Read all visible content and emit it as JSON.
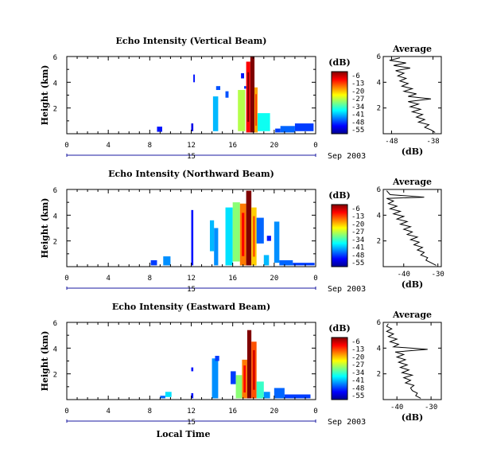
{
  "chart_data": [
    {
      "type": "heatmap",
      "title": "Echo Intensity (Vertical Beam)",
      "ylabel": "Height (km)",
      "y_ticks": [
        "6",
        "4",
        "2"
      ],
      "ylim": [
        0,
        6
      ],
      "x_ticks": [
        "0",
        "4",
        "8",
        "12",
        "16",
        "20",
        "0"
      ],
      "xlim_hours": [
        0,
        24
      ],
      "day_label": "15",
      "date_label": "Sep 2003",
      "colorbar": {
        "unit": "(dB)",
        "ticks": [
          "-6",
          "-13",
          "-20",
          "-27",
          "-34",
          "-41",
          "-48",
          "-55"
        ]
      },
      "echo_columns": [
        {
          "t0": 8.7,
          "t1": 9.2,
          "h0": 0.15,
          "h1": 0.55,
          "db": -48
        },
        {
          "t0": 12.0,
          "t1": 12.2,
          "h0": 0.2,
          "h1": 0.8,
          "db": -50
        },
        {
          "t0": 12.2,
          "t1": 12.35,
          "h0": 4.0,
          "h1": 4.6,
          "db": -48
        },
        {
          "t0": 14.1,
          "t1": 14.6,
          "h0": 0.2,
          "h1": 2.9,
          "db": -40
        },
        {
          "t0": 14.4,
          "t1": 14.8,
          "h0": 3.4,
          "h1": 3.7,
          "db": -45
        },
        {
          "t0": 15.3,
          "t1": 15.6,
          "h0": 2.8,
          "h1": 3.3,
          "db": -45
        },
        {
          "t0": 16.5,
          "t1": 17.2,
          "h0": 0.2,
          "h1": 3.4,
          "db": -28
        },
        {
          "t0": 16.8,
          "t1": 17.1,
          "h0": 4.3,
          "h1": 4.7,
          "db": -48
        },
        {
          "t0": 17.1,
          "t1": 17.4,
          "h0": 3.5,
          "h1": 3.7,
          "db": -46
        },
        {
          "t0": 17.3,
          "t1": 17.7,
          "h0": 0.1,
          "h1": 5.6,
          "db": -12
        },
        {
          "t0": 17.7,
          "t1": 18.1,
          "h0": 0.1,
          "h1": 6.0,
          "db": -5
        },
        {
          "t0": 18.1,
          "t1": 18.4,
          "h0": 0.1,
          "h1": 3.6,
          "db": -20
        },
        {
          "t0": 18.4,
          "t1": 19.6,
          "h0": 0.2,
          "h1": 1.6,
          "db": -36
        },
        {
          "t0": 20.1,
          "t1": 20.6,
          "h0": 0.1,
          "h1": 0.4,
          "db": -46
        },
        {
          "t0": 20.6,
          "t1": 22.0,
          "h0": 0.1,
          "h1": 0.6,
          "db": -44
        },
        {
          "t0": 22.0,
          "t1": 23.8,
          "h0": 0.2,
          "h1": 0.8,
          "db": -46
        }
      ],
      "average_profile": {
        "title": "Average",
        "xlabel": "(dB)",
        "x_ticks": [
          "-48",
          "-38"
        ],
        "xlim": [
          -50,
          -36
        ],
        "y_ticks": [
          "6",
          "4",
          "2"
        ],
        "ylim": [
          0,
          6
        ],
        "points": [
          [
            -37.5,
            0.1
          ],
          [
            -38.5,
            0.3
          ],
          [
            -40.0,
            0.5
          ],
          [
            -39.0,
            0.7
          ],
          [
            -41.5,
            0.9
          ],
          [
            -40.0,
            1.1
          ],
          [
            -42.0,
            1.3
          ],
          [
            -40.5,
            1.5
          ],
          [
            -43.0,
            1.7
          ],
          [
            -41.0,
            1.9
          ],
          [
            -43.5,
            2.1
          ],
          [
            -41.5,
            2.3
          ],
          [
            -44.0,
            2.5
          ],
          [
            -38.5,
            2.7
          ],
          [
            -44.0,
            2.9
          ],
          [
            -42.0,
            3.1
          ],
          [
            -45.0,
            3.3
          ],
          [
            -43.0,
            3.5
          ],
          [
            -45.5,
            3.7
          ],
          [
            -44.0,
            3.9
          ],
          [
            -46.0,
            4.1
          ],
          [
            -44.5,
            4.3
          ],
          [
            -46.5,
            4.5
          ],
          [
            -45.0,
            4.7
          ],
          [
            -47.0,
            4.9
          ],
          [
            -43.5,
            5.1
          ],
          [
            -47.5,
            5.3
          ],
          [
            -44.5,
            5.5
          ],
          [
            -48.5,
            5.7
          ],
          [
            -46.0,
            5.9
          ]
        ]
      }
    },
    {
      "type": "heatmap",
      "title": "Echo Intensity (Northward Beam)",
      "ylabel": "Height (km)",
      "y_ticks": [
        "6",
        "4",
        "2"
      ],
      "ylim": [
        0,
        6
      ],
      "x_ticks": [
        "0",
        "4",
        "8",
        "12",
        "16",
        "20",
        "0"
      ],
      "xlim_hours": [
        0,
        24
      ],
      "day_label": "15",
      "date_label": "Sep 2003",
      "colorbar": {
        "unit": "(dB)",
        "ticks": [
          "-6",
          "-13",
          "-20",
          "-27",
          "-34",
          "-41",
          "-48",
          "-55"
        ]
      },
      "echo_columns": [
        {
          "t0": 8.1,
          "t1": 8.7,
          "h0": 0.1,
          "h1": 0.5,
          "db": -46
        },
        {
          "t0": 9.3,
          "t1": 10.0,
          "h0": 0.1,
          "h1": 0.8,
          "db": -42
        },
        {
          "t0": 12.0,
          "t1": 12.2,
          "h0": 0.1,
          "h1": 4.4,
          "db": -48
        },
        {
          "t0": 13.8,
          "t1": 14.2,
          "h0": 1.2,
          "h1": 3.6,
          "db": -40
        },
        {
          "t0": 14.2,
          "t1": 14.6,
          "h0": 0.1,
          "h1": 3.0,
          "db": -42
        },
        {
          "t0": 15.3,
          "t1": 16.0,
          "h0": 0.1,
          "h1": 4.6,
          "db": -38
        },
        {
          "t0": 16.0,
          "t1": 16.7,
          "h0": 0.4,
          "h1": 5.0,
          "db": -30
        },
        {
          "t0": 16.7,
          "t1": 17.3,
          "h0": 0.1,
          "h1": 4.9,
          "db": -18
        },
        {
          "t0": 17.3,
          "t1": 17.8,
          "h0": 0.1,
          "h1": 5.9,
          "db": -6
        },
        {
          "t0": 17.8,
          "t1": 18.3,
          "h0": 0.1,
          "h1": 4.6,
          "db": -22
        },
        {
          "t0": 18.3,
          "t1": 19.0,
          "h0": 1.8,
          "h1": 3.8,
          "db": -44
        },
        {
          "t0": 19.3,
          "t1": 19.7,
          "h0": 2.0,
          "h1": 2.4,
          "db": -48
        },
        {
          "t0": 19.0,
          "t1": 19.5,
          "h0": 0.1,
          "h1": 0.9,
          "db": -40
        },
        {
          "t0": 20.0,
          "t1": 20.5,
          "h0": 0.3,
          "h1": 3.5,
          "db": -42
        },
        {
          "t0": 20.5,
          "t1": 21.8,
          "h0": 0.1,
          "h1": 0.5,
          "db": -44
        },
        {
          "t0": 21.8,
          "t1": 23.9,
          "h0": 0.1,
          "h1": 0.3,
          "db": -46
        }
      ],
      "average_profile": {
        "title": "Average",
        "xlabel": "(dB)",
        "x_ticks": [
          "-40",
          "-30"
        ],
        "xlim": [
          -46,
          -29
        ],
        "y_ticks": [
          "6",
          "4",
          "2"
        ],
        "ylim": [
          0,
          6
        ],
        "points": [
          [
            -30.5,
            0.1
          ],
          [
            -32.0,
            0.3
          ],
          [
            -33.5,
            0.5
          ],
          [
            -33.0,
            0.7
          ],
          [
            -35.0,
            0.9
          ],
          [
            -34.0,
            1.1
          ],
          [
            -36.0,
            1.3
          ],
          [
            -34.5,
            1.5
          ],
          [
            -37.0,
            1.7
          ],
          [
            -35.5,
            1.9
          ],
          [
            -38.0,
            2.1
          ],
          [
            -36.0,
            2.3
          ],
          [
            -39.0,
            2.5
          ],
          [
            -37.5,
            2.7
          ],
          [
            -40.0,
            2.9
          ],
          [
            -38.0,
            3.1
          ],
          [
            -41.0,
            3.3
          ],
          [
            -39.0,
            3.5
          ],
          [
            -42.0,
            3.7
          ],
          [
            -40.0,
            3.9
          ],
          [
            -43.0,
            4.1
          ],
          [
            -41.0,
            4.3
          ],
          [
            -44.0,
            4.5
          ],
          [
            -42.0,
            4.7
          ],
          [
            -44.5,
            4.9
          ],
          [
            -43.0,
            5.1
          ],
          [
            -45.0,
            5.3
          ],
          [
            -34.0,
            5.4
          ],
          [
            -44.0,
            5.6
          ],
          [
            -45.0,
            5.9
          ]
        ]
      }
    },
    {
      "type": "heatmap",
      "title": "Echo Intensity (Eastward Beam)",
      "ylabel": "Height (km)",
      "y_ticks": [
        "6",
        "4",
        "2"
      ],
      "ylim": [
        0,
        6
      ],
      "x_ticks": [
        "0",
        "4",
        "8",
        "12",
        "16",
        "20",
        "0"
      ],
      "xlim_hours": [
        0,
        24
      ],
      "day_label": "15",
      "date_label": "Sep 2003",
      "xlabel": "Local Time",
      "colorbar": {
        "unit": "(dB)",
        "ticks": [
          "-6",
          "-13",
          "-20",
          "-27",
          "-34",
          "-41",
          "-48",
          "-55"
        ]
      },
      "echo_columns": [
        {
          "t0": 9.0,
          "t1": 9.5,
          "h0": 0.1,
          "h1": 0.3,
          "db": -44
        },
        {
          "t0": 9.5,
          "t1": 10.1,
          "h0": 0.2,
          "h1": 0.6,
          "db": -38
        },
        {
          "t0": 12.0,
          "t1": 12.2,
          "h0": 0.1,
          "h1": 0.5,
          "db": -48
        },
        {
          "t0": 12.0,
          "t1": 12.2,
          "h0": 2.2,
          "h1": 2.5,
          "db": -48
        },
        {
          "t0": 14.0,
          "t1": 14.6,
          "h0": 0.1,
          "h1": 3.2,
          "db": -42
        },
        {
          "t0": 14.3,
          "t1": 14.7,
          "h0": 3.0,
          "h1": 3.4,
          "db": -46
        },
        {
          "t0": 15.8,
          "t1": 16.3,
          "h0": 1.2,
          "h1": 2.2,
          "db": -46
        },
        {
          "t0": 16.3,
          "t1": 16.9,
          "h0": 0.1,
          "h1": 1.9,
          "db": -30
        },
        {
          "t0": 16.9,
          "t1": 17.4,
          "h0": 0.1,
          "h1": 3.1,
          "db": -18
        },
        {
          "t0": 17.4,
          "t1": 17.8,
          "h0": 0.1,
          "h1": 5.4,
          "db": -6
        },
        {
          "t0": 17.8,
          "t1": 18.3,
          "h0": 0.1,
          "h1": 4.5,
          "db": -16
        },
        {
          "t0": 18.3,
          "t1": 19.0,
          "h0": 0.1,
          "h1": 1.4,
          "db": -34
        },
        {
          "t0": 19.0,
          "t1": 19.6,
          "h0": 0.1,
          "h1": 0.6,
          "db": -42
        },
        {
          "t0": 20.0,
          "t1": 21.0,
          "h0": 0.1,
          "h1": 0.9,
          "db": -44
        },
        {
          "t0": 21.0,
          "t1": 23.5,
          "h0": 0.1,
          "h1": 0.4,
          "db": -46
        }
      ],
      "average_profile": {
        "title": "Average",
        "xlabel": "(dB)",
        "x_ticks": [
          "-40",
          "-30"
        ],
        "xlim": [
          -44,
          -27
        ],
        "y_ticks": [
          "6",
          "4",
          "2"
        ],
        "ylim": [
          0,
          6
        ],
        "points": [
          [
            -33.0,
            0.1
          ],
          [
            -34.5,
            0.3
          ],
          [
            -34.0,
            0.5
          ],
          [
            -35.5,
            0.7
          ],
          [
            -36.0,
            0.9
          ],
          [
            -35.0,
            1.1
          ],
          [
            -37.5,
            1.3
          ],
          [
            -36.0,
            1.5
          ],
          [
            -38.0,
            1.7
          ],
          [
            -35.5,
            1.9
          ],
          [
            -38.5,
            2.1
          ],
          [
            -36.5,
            2.3
          ],
          [
            -39.0,
            2.5
          ],
          [
            -37.0,
            2.7
          ],
          [
            -39.5,
            2.9
          ],
          [
            -37.5,
            3.1
          ],
          [
            -40.0,
            3.3
          ],
          [
            -38.0,
            3.5
          ],
          [
            -40.5,
            3.7
          ],
          [
            -31.0,
            3.9
          ],
          [
            -41.0,
            4.1
          ],
          [
            -39.5,
            4.3
          ],
          [
            -42.0,
            4.5
          ],
          [
            -40.0,
            4.7
          ],
          [
            -42.5,
            4.9
          ],
          [
            -41.0,
            5.1
          ],
          [
            -43.0,
            5.3
          ],
          [
            -41.5,
            5.5
          ],
          [
            -43.0,
            5.7
          ],
          [
            -42.5,
            5.9
          ]
        ]
      }
    }
  ]
}
